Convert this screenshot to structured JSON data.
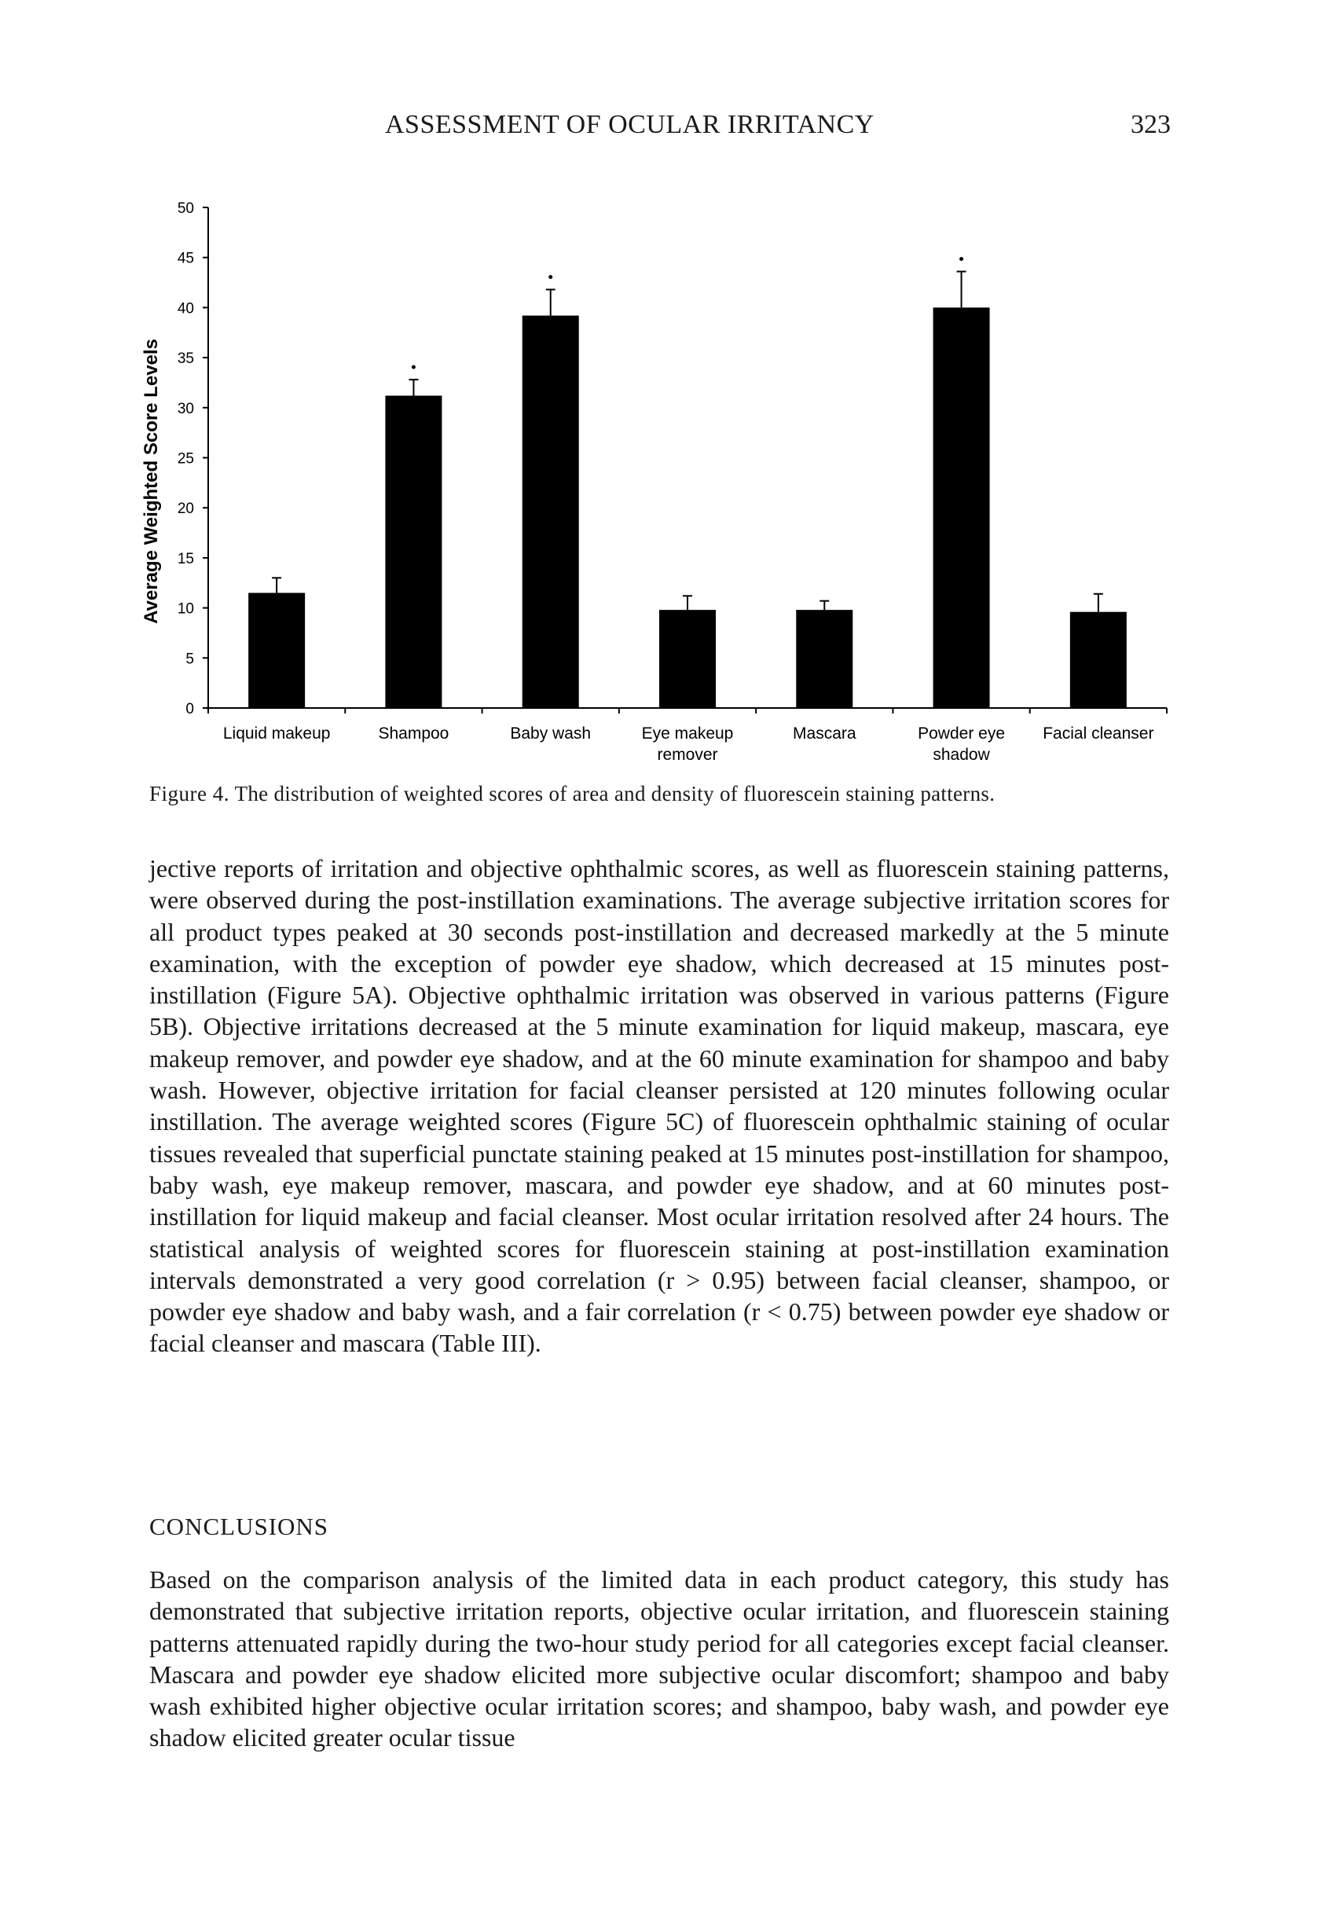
{
  "header": {
    "running_title": "ASSESSMENT OF OCULAR IRRITANCY",
    "page_number": "323"
  },
  "figure": {
    "caption_label": "Figure 4.",
    "caption_text": "The distribution of weighted scores of area and density of fluorescein staining patterns."
  },
  "chart_data": {
    "type": "bar",
    "title": "",
    "xlabel": "",
    "ylabel": "Average Weighted Score Levels",
    "ylim": [
      0,
      50
    ],
    "yticks": [
      0,
      5,
      10,
      15,
      20,
      25,
      30,
      35,
      40,
      45,
      50
    ],
    "categories": [
      "Liquid makeup",
      "Shampoo",
      "Baby wash",
      "Eye makeup remover",
      "Mascara",
      "Powder eye shadow",
      "Facial cleanser"
    ],
    "category_label_lines": [
      [
        "Liquid makeup"
      ],
      [
        "Shampoo"
      ],
      [
        "Baby wash"
      ],
      [
        "Eye makeup",
        "remover"
      ],
      [
        "Mascara"
      ],
      [
        "Powder eye",
        "shadow"
      ],
      [
        "Facial cleanser"
      ]
    ],
    "values": [
      11.5,
      31.2,
      39.2,
      9.8,
      9.8,
      40.0,
      9.6
    ],
    "error_upper": [
      1.5,
      1.6,
      2.6,
      1.4,
      0.9,
      3.6,
      1.8
    ],
    "significant": [
      false,
      true,
      true,
      false,
      false,
      true,
      false
    ],
    "bar_color": "#000000",
    "grid": false,
    "legend": "none"
  },
  "body": {
    "paragraph_1": "jective reports of irritation and objective ophthalmic scores, as well as fluorescein staining patterns, were observed during the post-instillation examinations. The average subjective irritation scores for all product types peaked at 30 seconds post-instillation and decreased markedly at the 5 minute examination, with the exception of powder eye shadow, which decreased at 15 minutes post-instillation (Figure 5A). Objective ophthalmic irritation was observed in various patterns (Figure 5B). Objective irritations decreased at the 5 minute examination for liquid makeup, mascara, eye makeup remover, and powder eye shadow, and at the 60 minute examination for shampoo and baby wash. However, objective irritation for facial cleanser persisted at 120 minutes following ocular instillation. The average weighted scores (Figure 5C) of fluorescein ophthalmic staining of ocular tissues revealed that superficial punctate staining peaked at 15 minutes post-instillation for shampoo, baby wash, eye makeup remover, mascara, and powder eye shadow, and at 60 minutes post-instillation for liquid makeup and facial cleanser. Most ocular irritation resolved after 24 hours. The statistical analysis of weighted scores for fluorescein staining at post-instillation examination intervals demonstrated a very good correlation (r > 0.95) between facial cleanser, shampoo, or powder eye shadow and baby wash, and a fair correlation (r < 0.75) between powder eye shadow or facial cleanser and mascara (Table III).",
    "conclusions_heading": "CONCLUSIONS",
    "paragraph_2": "Based on the comparison analysis of the limited data in each product category, this study has demonstrated that subjective irritation reports, objective ocular irritation, and fluorescein staining patterns attenuated rapidly during the two-hour study period for all categories except facial cleanser. Mascara and powder eye shadow elicited more subjective ocular discomfort; shampoo and baby wash exhibited higher objective ocular irritation scores; and shampoo, baby wash, and powder eye shadow elicited greater ocular tissue"
  }
}
